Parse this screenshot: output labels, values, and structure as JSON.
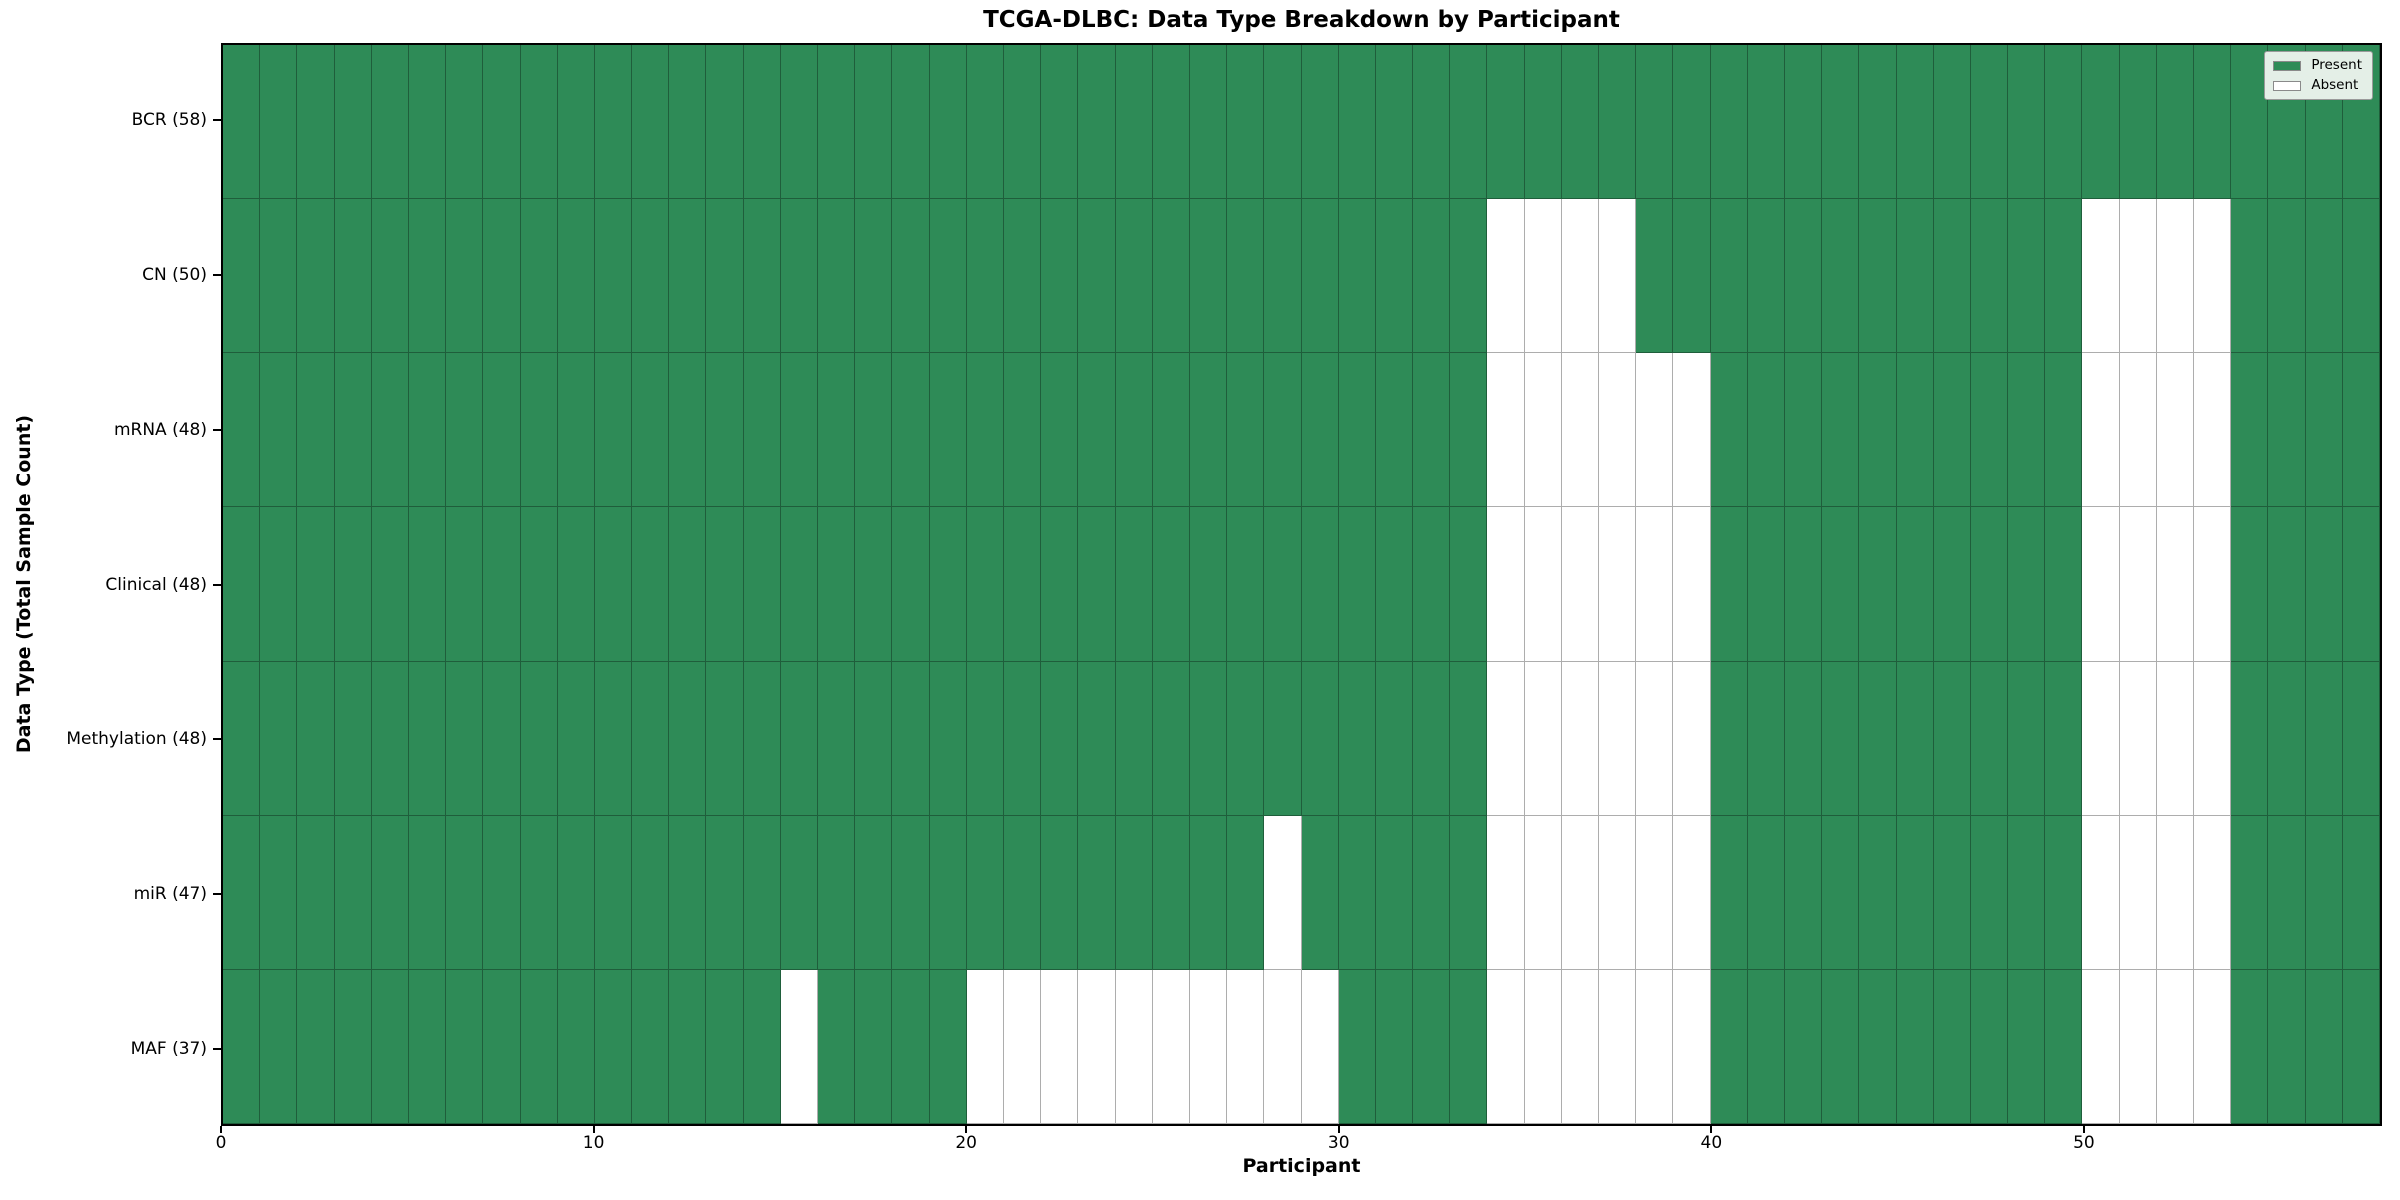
{
  "chart_data": {
    "type": "heatmap",
    "title": "TCGA-DLBC: Data Type Breakdown by Participant",
    "xlabel": "Participant",
    "ylabel": "Data Type (Total Sample Count)",
    "n_participants": 58,
    "x_axis_range": [
      0,
      58
    ],
    "x_ticks": [
      "0",
      "10",
      "20",
      "30",
      "40",
      "50"
    ],
    "x_tick_values": [
      0,
      10,
      20,
      30,
      40,
      50
    ],
    "grid": "cell-edges",
    "legend_position": "upper-right",
    "legend": [
      {
        "label": "Present",
        "color": "#2e8b57"
      },
      {
        "label": "Absent",
        "color": "#ffffff"
      }
    ],
    "colors": {
      "present": "#2e8b57",
      "absent": "#ffffff",
      "cell_edge": "rgba(0,0,0,0.32)",
      "legend_background": "#e4efe7"
    },
    "rows": [
      {
        "label": "BCR (58)",
        "data_type": "BCR",
        "present_count": 58,
        "absent_participants": []
      },
      {
        "label": "CN (50)",
        "data_type": "CN",
        "present_count": 50,
        "absent_participants": [
          34,
          35,
          36,
          37,
          50,
          51,
          52,
          53
        ]
      },
      {
        "label": "mRNA (48)",
        "data_type": "mRNA",
        "present_count": 48,
        "absent_participants": [
          34,
          35,
          36,
          37,
          38,
          39,
          50,
          51,
          52,
          53
        ]
      },
      {
        "label": "Clinical (48)",
        "data_type": "Clinical",
        "present_count": 48,
        "absent_participants": [
          34,
          35,
          36,
          37,
          38,
          39,
          50,
          51,
          52,
          53
        ]
      },
      {
        "label": "Methylation (48)",
        "data_type": "Methylation",
        "present_count": 48,
        "absent_participants": [
          34,
          35,
          36,
          37,
          38,
          39,
          50,
          51,
          52,
          53
        ]
      },
      {
        "label": "miR (47)",
        "data_type": "miR",
        "present_count": 47,
        "absent_participants": [
          28,
          34,
          35,
          36,
          37,
          38,
          39,
          50,
          51,
          52,
          53
        ]
      },
      {
        "label": "MAF (37)",
        "data_type": "MAF",
        "present_count": 37,
        "absent_participants": [
          15,
          20,
          21,
          22,
          23,
          24,
          25,
          26,
          27,
          28,
          29,
          34,
          35,
          36,
          37,
          38,
          39,
          50,
          51,
          52,
          53
        ]
      }
    ]
  }
}
